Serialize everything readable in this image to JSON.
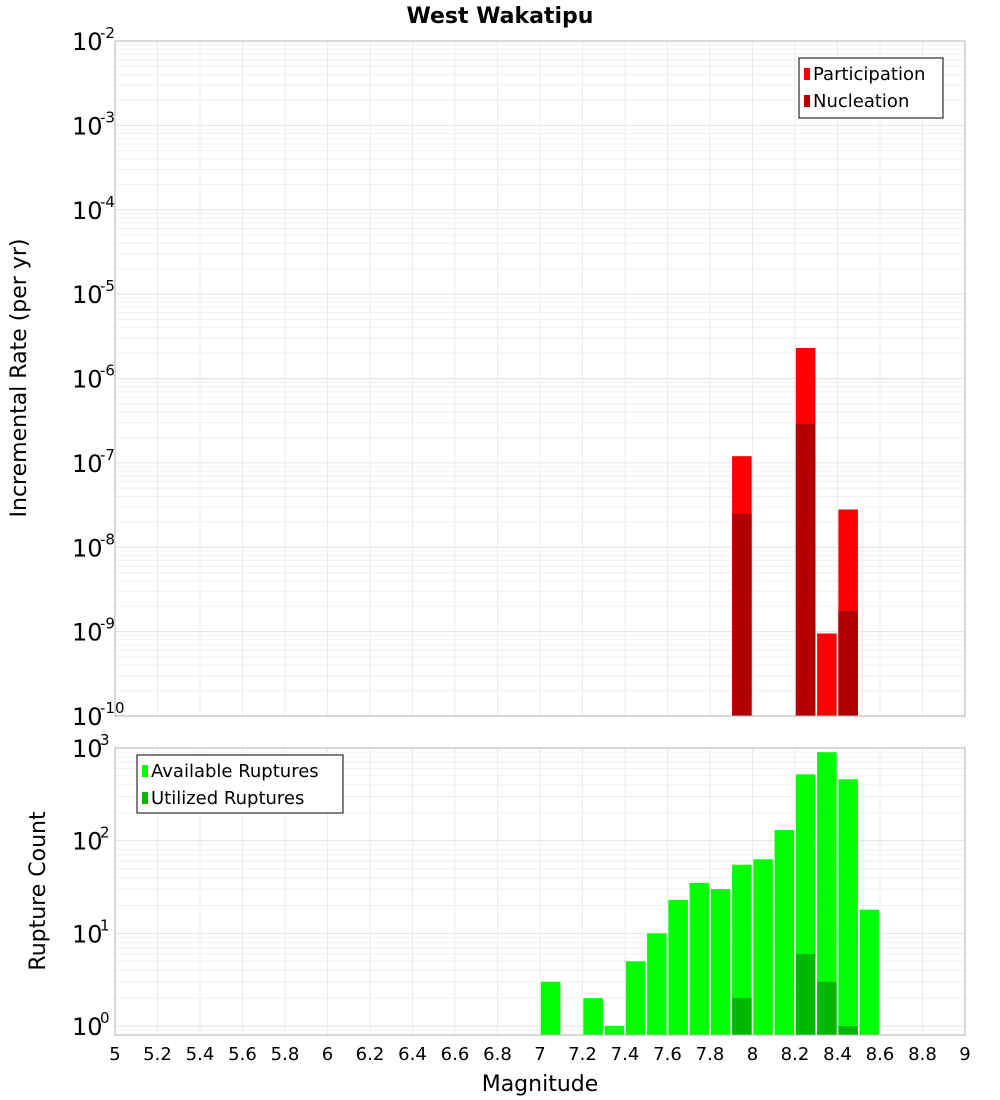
{
  "title": "West Wakatipu",
  "xlabel": "Magnitude",
  "x_ticks": [
    "5",
    "5.2",
    "5.4",
    "5.6",
    "5.8",
    "6",
    "6.2",
    "6.4",
    "6.6",
    "6.8",
    "7",
    "7.2",
    "7.4",
    "7.6",
    "7.8",
    "8",
    "8.2",
    "8.4",
    "8.6",
    "8.8",
    "9"
  ],
  "chart_data": [
    {
      "type": "bar",
      "ylabel": "Incremental Rate (per yr)",
      "y_scale": "log",
      "xlim": [
        5,
        9
      ],
      "ylim": [
        1e-10,
        0.01
      ],
      "y_ticks": [
        {
          "base": "10",
          "exp": "-10",
          "value": 1e-10
        },
        {
          "base": "10",
          "exp": "-9",
          "value": 1e-09
        },
        {
          "base": "10",
          "exp": "-8",
          "value": 1e-08
        },
        {
          "base": "10",
          "exp": "-7",
          "value": 1e-07
        },
        {
          "base": "10",
          "exp": "-6",
          "value": 1e-06
        },
        {
          "base": "10",
          "exp": "-5",
          "value": 1e-05
        },
        {
          "base": "10",
          "exp": "-4",
          "value": 0.0001
        },
        {
          "base": "10",
          "exp": "-3",
          "value": 0.001
        },
        {
          "base": "10",
          "exp": "-2",
          "value": 0.01
        }
      ],
      "grid": true,
      "legend_position": "top-right",
      "series": [
        {
          "name": "Participation",
          "color": "#ff0000",
          "x": [
            7.95,
            8.25,
            8.35,
            8.45
          ],
          "values": [
            1.2e-07,
            2.3e-06,
            9.5e-10,
            2.8e-08
          ]
        },
        {
          "name": "Nucleation",
          "color": "#b00000",
          "x": [
            7.95,
            8.25,
            8.45
          ],
          "values": [
            2.5e-08,
            2.9e-07,
            1.75e-09
          ]
        }
      ]
    },
    {
      "type": "bar",
      "ylabel": "Rupture Count",
      "y_scale": "log",
      "xlim": [
        5,
        9
      ],
      "ylim": [
        0.8,
        1000
      ],
      "y_ticks": [
        {
          "base": "10",
          "exp": "0",
          "value": 1
        },
        {
          "base": "10",
          "exp": "1",
          "value": 10
        },
        {
          "base": "10",
          "exp": "2",
          "value": 100
        },
        {
          "base": "10",
          "exp": "3",
          "value": 1000
        }
      ],
      "grid": true,
      "legend_position": "top-left",
      "series": [
        {
          "name": "Available Ruptures",
          "color": "#00ff00",
          "x": [
            7.05,
            7.25,
            7.35,
            7.45,
            7.55,
            7.65,
            7.75,
            7.85,
            7.95,
            8.05,
            8.15,
            8.25,
            8.35,
            8.45,
            8.55
          ],
          "values": [
            3,
            2,
            1,
            5,
            10,
            23,
            35,
            30,
            55,
            63,
            130,
            520,
            900,
            460,
            18
          ]
        },
        {
          "name": "Utilized Ruptures",
          "color": "#00b800",
          "x": [
            7.95,
            8.25,
            8.35,
            8.45
          ],
          "values": [
            2,
            6,
            3,
            1
          ]
        }
      ]
    }
  ]
}
